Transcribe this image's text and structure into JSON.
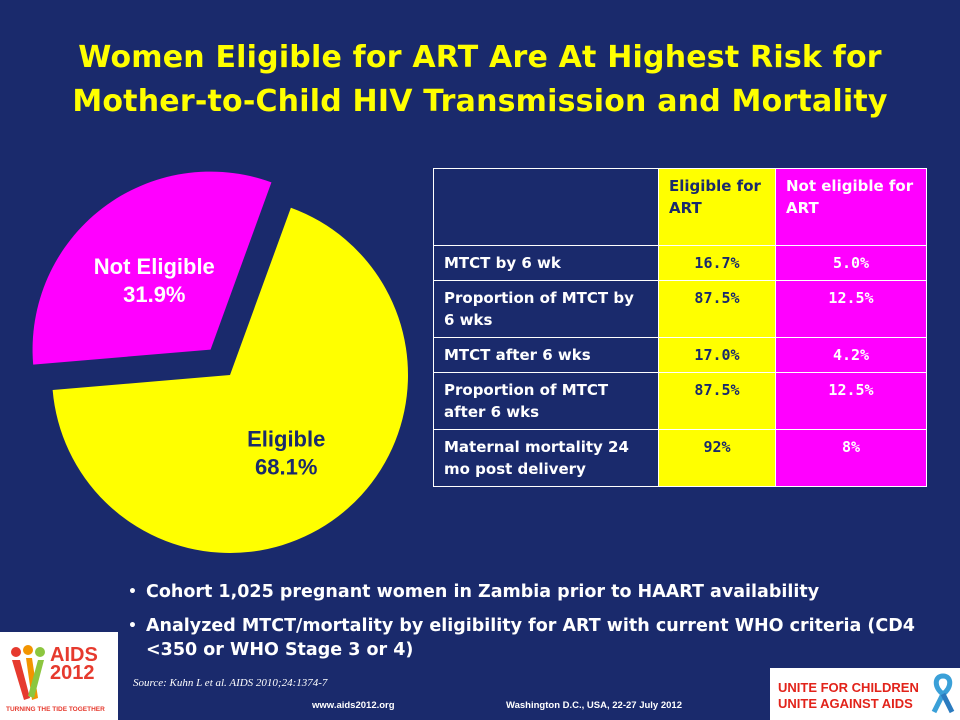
{
  "title": {
    "line1": "Women Eligible for ART Are At Highest Risk for",
    "line2": "Mother-to-Child HIV Transmission and Mortality"
  },
  "colors": {
    "background": "#1a2a6c",
    "eligible": "#ffff00",
    "not_eligible": "#ff00ff"
  },
  "chart_data": {
    "type": "pie",
    "slices": [
      {
        "label": "Eligible",
        "value": 68.1,
        "value_label": "68.1%",
        "color": "#ffff00",
        "exploded": false
      },
      {
        "label": "Not Eligible",
        "value": 31.9,
        "value_label": "31.9%",
        "color": "#ff00ff",
        "exploded": true
      }
    ]
  },
  "table": {
    "headers": [
      "",
      "Eligible for ART",
      "Not eligible for ART"
    ],
    "rows": [
      {
        "label": "MTCT by 6 wk",
        "eligible": "16.7%",
        "not_eligible": "5.0%"
      },
      {
        "label": "Proportion of MTCT by 6 wks",
        "eligible": "87.5%",
        "not_eligible": "12.5%"
      },
      {
        "label": "MTCT after 6 wks",
        "eligible": "17.0%",
        "not_eligible": "4.2%"
      },
      {
        "label": "Proportion of MTCT after 6 wks",
        "eligible": "87.5%",
        "not_eligible": "12.5%"
      },
      {
        "label": "Maternal mortality 24 mo post delivery",
        "eligible": "92%",
        "not_eligible": "8%"
      }
    ]
  },
  "bullets": [
    "Cohort 1,025 pregnant women in Zambia prior to HAART availability",
    "Analyzed MTCT/mortality by eligibility for ART with current WHO criteria (CD4 <350 or WHO Stage 3 or 4)"
  ],
  "source": "Source: Kuhn L et al. AIDS 2010;24:1374-7",
  "footer": {
    "url": "www.aids2012.org",
    "location": "Washington D.C., USA, 22-27 July 2012"
  },
  "logos": {
    "left": {
      "text": "AIDS 2012",
      "tagline": "TURNING THE TIDE TOGETHER",
      "icon": "ribbon-people-icon"
    },
    "right": {
      "line1": "UNITE FOR CHILDREN",
      "line2": "UNITE AGAINST AIDS",
      "icon": "ribbon-icon"
    }
  }
}
